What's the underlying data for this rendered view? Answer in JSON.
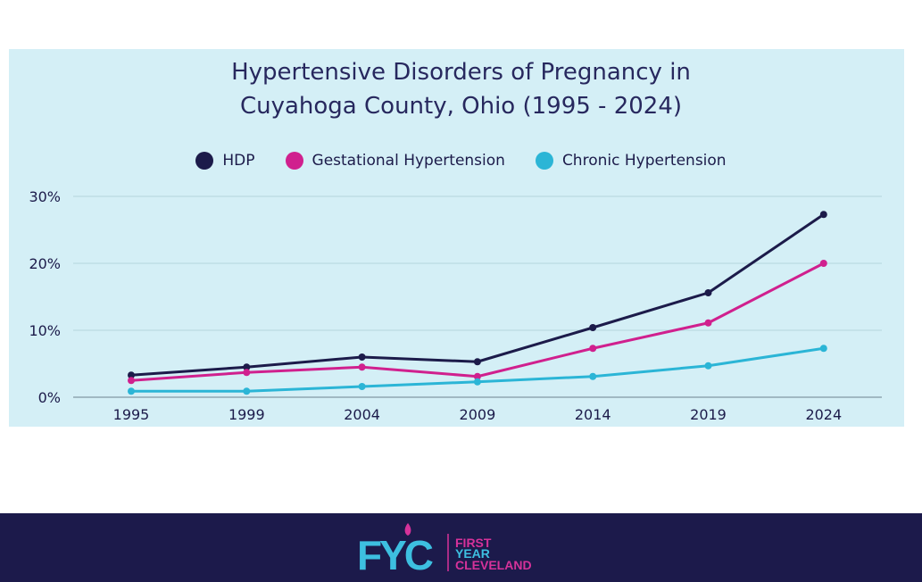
{
  "chart_data": {
    "type": "line",
    "title_lines": [
      "Hypertensive Disorders of Pregnancy in",
      "Cuyahoga County, Ohio (1995 - 2024)"
    ],
    "categories": [
      "1995",
      "1999",
      "2004",
      "2009",
      "2014",
      "2019",
      "2024"
    ],
    "yticks": [
      "0%",
      "10%",
      "20%",
      "30%"
    ],
    "ylim": [
      0,
      30
    ],
    "grid": true,
    "legend_position": "top",
    "series": [
      {
        "name": "HDP",
        "color": "#1c1b4a",
        "values": [
          3.3,
          4.5,
          6.0,
          5.3,
          10.4,
          15.6,
          27.3
        ]
      },
      {
        "name": "Gestational Hypertension",
        "color": "#d0208e",
        "values": [
          2.5,
          3.7,
          4.5,
          3.1,
          7.3,
          11.1,
          20.0
        ]
      },
      {
        "name": "Chronic Hypertension",
        "color": "#2bb5d6",
        "values": [
          0.9,
          0.9,
          1.6,
          2.3,
          3.1,
          4.7,
          7.3
        ]
      }
    ]
  },
  "footer": {
    "logo_text": "FYC",
    "org_lines": [
      "FIRST",
      "YEAR",
      "CLEVELAND"
    ],
    "colors": {
      "pink": "#d6329a",
      "cyan": "#3dbfe0",
      "navy": "#1c1a4b"
    }
  }
}
